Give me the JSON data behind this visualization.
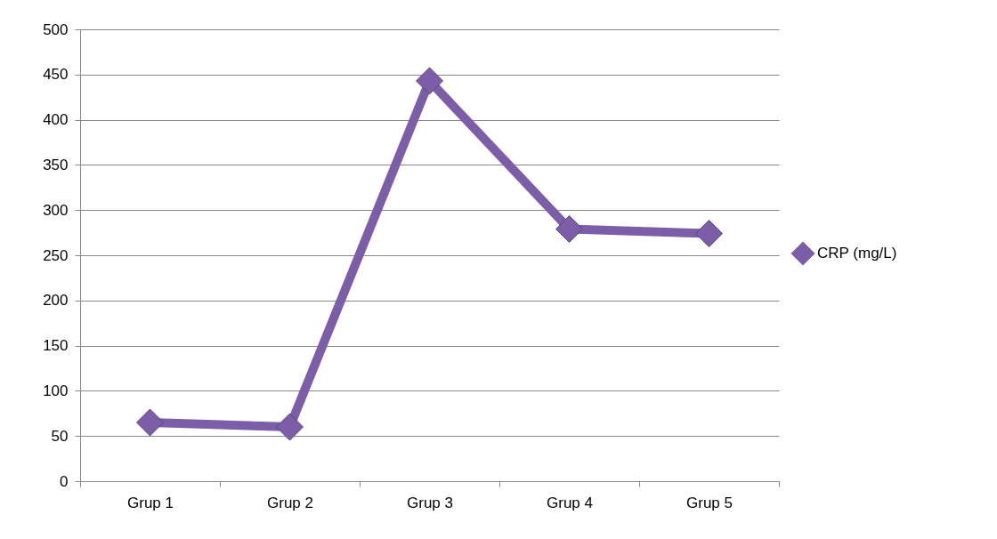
{
  "chart_data": {
    "type": "line",
    "categories": [
      "Grup 1",
      "Grup 2",
      "Grup 3",
      "Grup 4",
      "Grup 5"
    ],
    "series": [
      {
        "name": "CRP (mg/L)",
        "color": "#7b5ea7",
        "values": [
          65,
          60,
          443,
          279,
          274
        ]
      }
    ],
    "ylim": [
      0,
      500
    ],
    "yticks": [
      0,
      50,
      100,
      150,
      200,
      250,
      300,
      350,
      400,
      450,
      500
    ],
    "grid": "y",
    "legend": "right",
    "marker": "diamond",
    "line_style": "solid"
  }
}
